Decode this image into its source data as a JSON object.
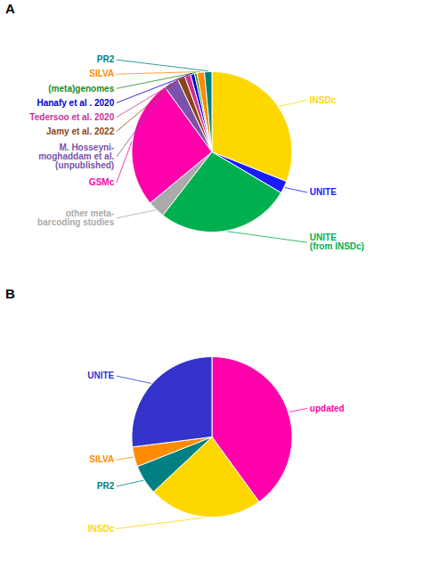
{
  "chart_data": [
    {
      "type": "pie",
      "title": "A",
      "categories": [
        "INSDc",
        "UNITE",
        "UNITE\n(from INSDc)",
        "other meta-\nbarcoding studies",
        "GSMc",
        "M. Hosseyni-\nmoghaddam et al.\n(unpublished)",
        "Jamy et al. 2022",
        "Tedersoo et al. 2020",
        "Hanafy et al . 2020",
        "(meta)genomes",
        "SILVA",
        "PR2"
      ],
      "values": [
        31,
        2.5,
        27,
        3.5,
        26,
        3.0,
        1.5,
        1.2,
        0.8,
        0.5,
        1.5,
        1.5
      ],
      "colors": [
        "#FFD700",
        "#1a1aff",
        "#00b050",
        "#aaaaaa",
        "#ff00aa",
        "#7b52ab",
        "#8B4513",
        "#cc3399",
        "#0000cc",
        "#228B22",
        "#ff8c00",
        "#008080"
      ]
    },
    {
      "type": "pie",
      "title": "B",
      "categories": [
        "updated",
        "INSDc",
        "PR2",
        "SILVA",
        "UNITE"
      ],
      "values": [
        40,
        23,
        6,
        4,
        27
      ],
      "colors": [
        "#ff00aa",
        "#FFD700",
        "#008080",
        "#ff8c00",
        "#3333cc"
      ]
    }
  ]
}
